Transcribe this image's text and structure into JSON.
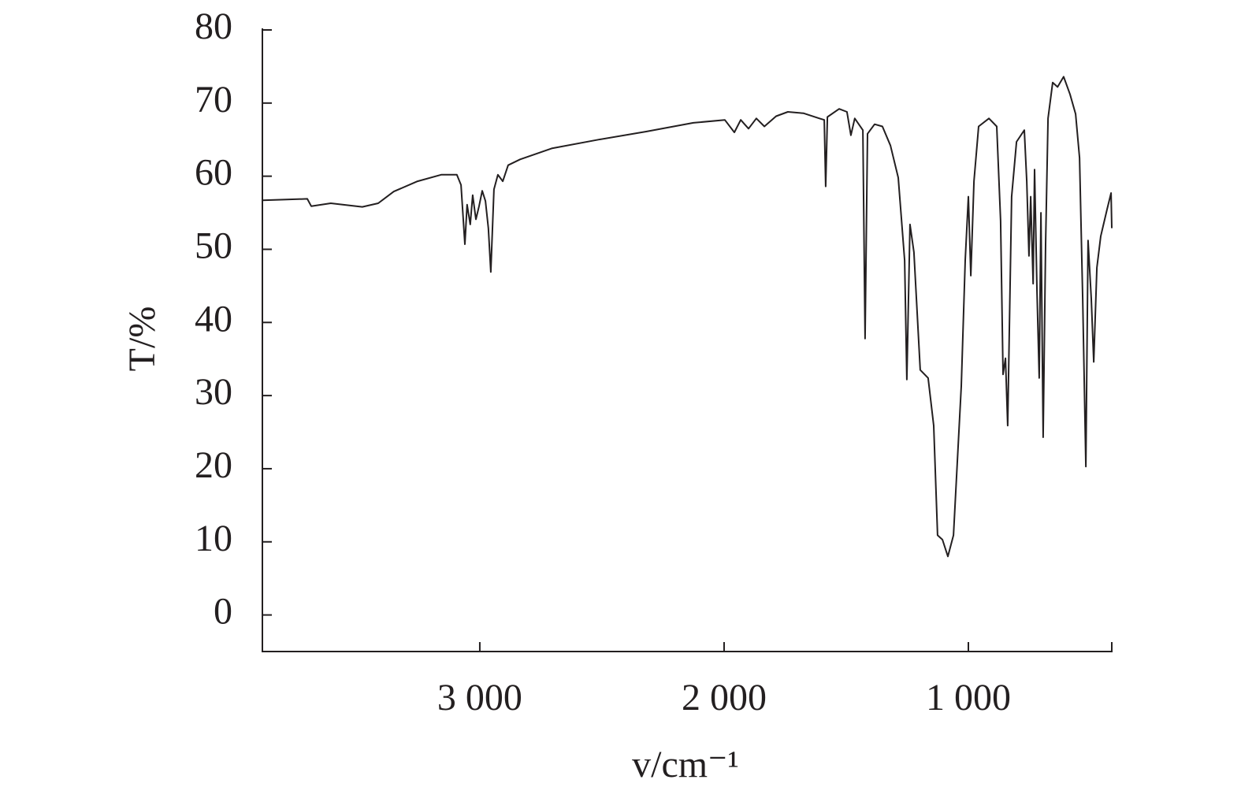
{
  "chart_data": {
    "type": "line",
    "x_label": "v/cm⁻¹",
    "y_label": "T/%",
    "xlim": [
      3890,
      413
    ],
    "ylim": [
      -5,
      80
    ],
    "xticks": [
      {
        "value": 3000,
        "label": "3 000"
      },
      {
        "value": 2000,
        "label": "2 000"
      },
      {
        "value": 1000,
        "label": "1 000"
      }
    ],
    "yticks": [
      0,
      10,
      20,
      30,
      40,
      50,
      60,
      70,
      80
    ],
    "series": [
      {
        "color": "#231f20",
        "x": [
          3890,
          3706,
          3690,
          3610,
          3481,
          3416,
          3352,
          3255,
          3158,
          3094,
          3077,
          3061,
          3052,
          3039,
          3029,
          3016,
          3003,
          2990,
          2977,
          2965,
          2955,
          2942,
          2926,
          2906,
          2884,
          2835,
          2706,
          2513,
          2319,
          2126,
          1997,
          1958,
          1932,
          1900,
          1868,
          1835,
          1787,
          1739,
          1674,
          1610,
          1590,
          1584,
          1577,
          1529,
          1497,
          1481,
          1465,
          1432,
          1423,
          1413,
          1384,
          1352,
          1319,
          1287,
          1261,
          1252,
          1239,
          1223,
          1197,
          1165,
          1142,
          1126,
          1106,
          1084,
          1061,
          1029,
          1013,
          1000,
          990,
          977,
          958,
          916,
          884,
          868,
          858,
          848,
          839,
          823,
          803,
          771,
          761,
          752,
          745,
          735,
          729,
          719,
          710,
          703,
          694,
          684,
          674,
          655,
          635,
          610,
          584,
          561,
          545,
          532,
          519,
          510,
          497,
          487,
          474,
          458,
          432,
          416,
          413
        ],
        "values": [
          56.7,
          56.9,
          55.9,
          56.3,
          55.8,
          56.3,
          57.9,
          59.3,
          60.2,
          60.2,
          58.8,
          50.7,
          56.1,
          53.4,
          57.4,
          54.1,
          55.9,
          58.0,
          56.6,
          52.9,
          46.9,
          58.2,
          60.2,
          59.3,
          61.5,
          62.3,
          63.8,
          65.0,
          66.1,
          67.3,
          67.7,
          66.0,
          67.7,
          66.5,
          67.9,
          66.8,
          68.2,
          68.8,
          68.6,
          67.9,
          67.7,
          58.6,
          68.1,
          69.2,
          68.8,
          65.6,
          67.9,
          66.3,
          37.8,
          65.8,
          67.1,
          66.8,
          64.2,
          59.8,
          48.5,
          32.2,
          53.4,
          49.6,
          33.5,
          32.4,
          25.9,
          10.9,
          10.3,
          8.0,
          10.9,
          31.3,
          48.5,
          57.2,
          46.4,
          59.3,
          66.8,
          67.9,
          66.8,
          53.9,
          32.9,
          35.1,
          25.9,
          57.2,
          64.7,
          66.3,
          59.3,
          49.1,
          57.2,
          45.3,
          60.9,
          44.2,
          32.4,
          55.0,
          24.3,
          50.7,
          67.9,
          72.8,
          72.2,
          73.6,
          71.2,
          68.5,
          62.5,
          43.2,
          20.3,
          51.2,
          43.2,
          34.6,
          47.5,
          51.8,
          55.5,
          57.7,
          52.9
        ]
      }
    ]
  }
}
